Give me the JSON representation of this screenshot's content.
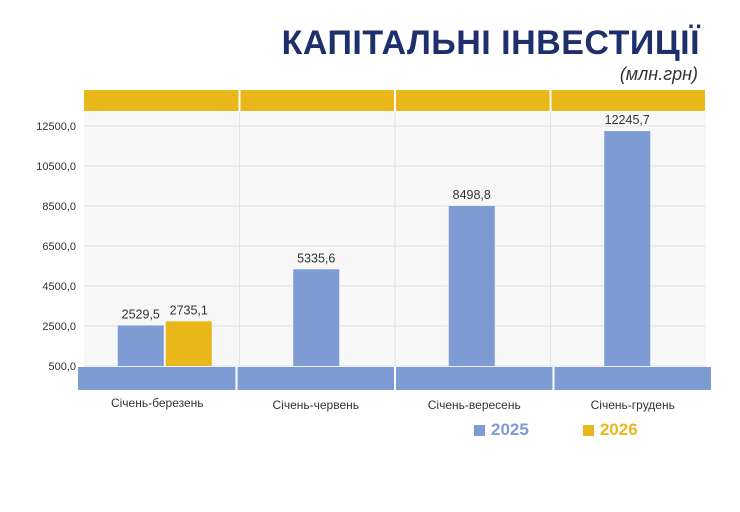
{
  "title": "КАПІТАЛЬНІ ІНВЕСТИЦІЇ",
  "unit": "(млн.грн)",
  "colors": {
    "s2025": "#7e9cd3",
    "s2026": "#e9b719",
    "title": "#1f2f6b",
    "band": "#7e9cd3",
    "topband": "#e9b719"
  },
  "chart_data": {
    "type": "bar",
    "categories": [
      "Січень-березень",
      "Січень-червень",
      "Січень-вересень",
      "Січень-грудень"
    ],
    "series": [
      {
        "name": "2025",
        "values": [
          2529.5,
          5335.6,
          8498.8,
          12245.7
        ],
        "labels": [
          "2529,5",
          "5335,6",
          "8498,8",
          "12245,7"
        ]
      },
      {
        "name": "2026",
        "values": [
          2735.1,
          null,
          null,
          null
        ],
        "labels": [
          "2735,1",
          "",
          "",
          ""
        ]
      }
    ],
    "yticks": [
      "500,0",
      "2500,0",
      "4500,0",
      "6500,0",
      "8500,0",
      "10500,0",
      "12500,0"
    ],
    "ytick_values": [
      500,
      2500,
      4500,
      6500,
      8500,
      10500,
      12500
    ],
    "ylim": [
      500,
      12500
    ],
    "grid": true,
    "legend_position": "bottom-right"
  }
}
